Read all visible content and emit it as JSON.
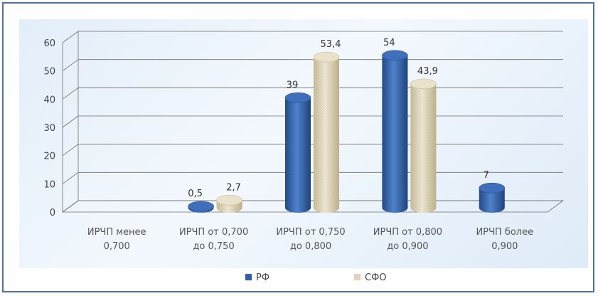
{
  "chart_data": {
    "type": "bar",
    "title": "",
    "xlabel": "",
    "ylabel": "",
    "ylim": [
      0,
      60
    ],
    "yticks": [
      "0",
      "10",
      "20",
      "30",
      "40",
      "50",
      "60"
    ],
    "grid": true,
    "legend_position": "bottom",
    "categories": [
      [
        "ИРЧП менее",
        "0,700"
      ],
      [
        "ИРЧП от 0,700",
        "до 0,750"
      ],
      [
        "ИРЧП от 0,750",
        "до 0,800"
      ],
      [
        "ИРЧП от 0,800",
        "до 0,900"
      ],
      [
        "ИРЧП более",
        "0,900"
      ]
    ],
    "series": [
      {
        "name": "РФ",
        "color": "#2f5fa8",
        "values": [
          null,
          0.5,
          39,
          54,
          7
        ],
        "labels": [
          "",
          "0,5",
          "39",
          "54",
          "7"
        ]
      },
      {
        "name": "СФО",
        "color": "#dcd3b8",
        "values": [
          null,
          2.7,
          53.4,
          43.9,
          null
        ],
        "labels": [
          "",
          "2,7",
          "53,4",
          "43,9",
          ""
        ]
      }
    ]
  }
}
